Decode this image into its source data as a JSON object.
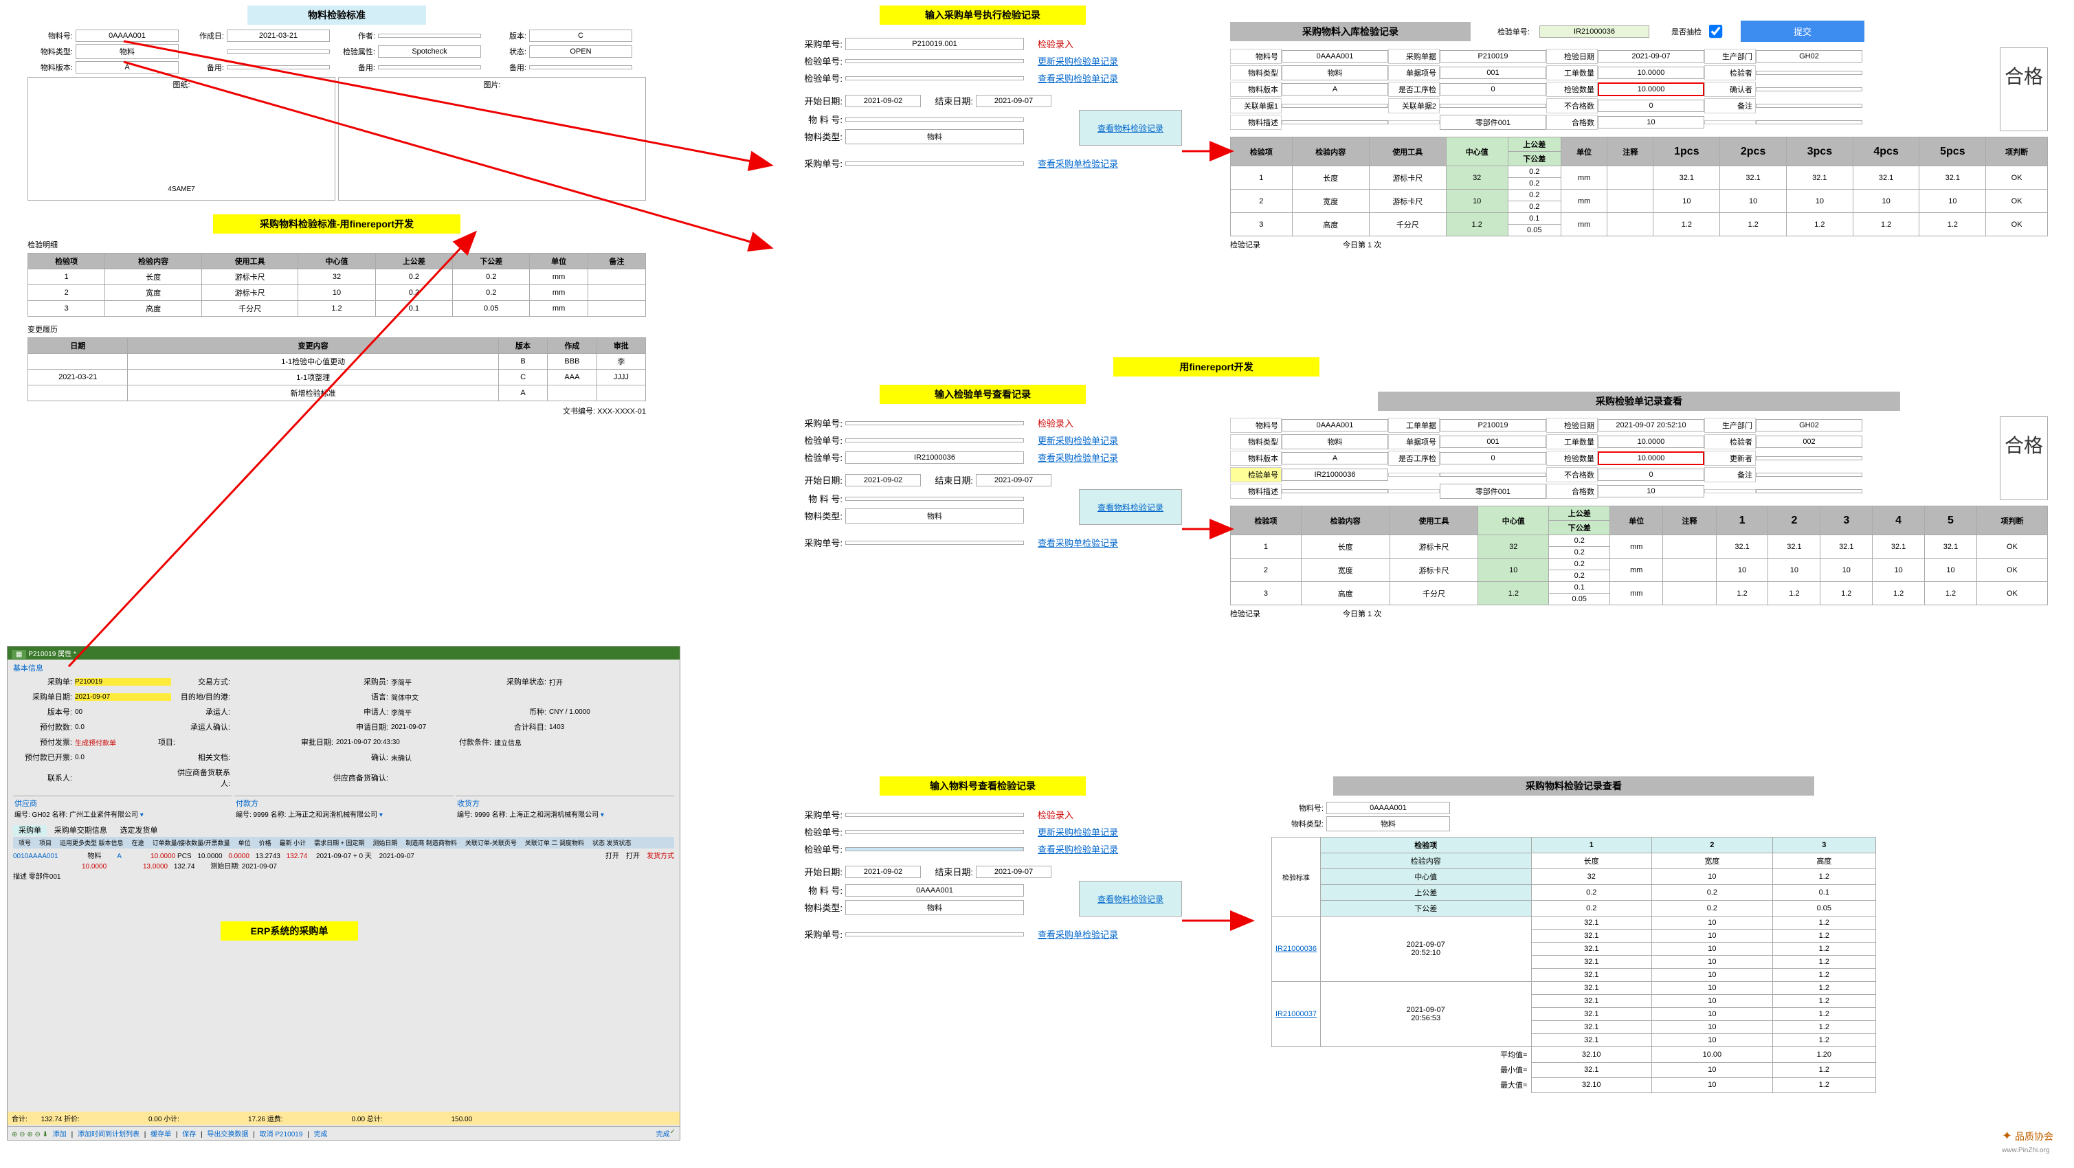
{
  "p1": {
    "title": "物料检验标准",
    "fields": [
      [
        "物料号:",
        "0AAAA001",
        "作成日:",
        "2021-03-21",
        "作者:",
        "",
        "版本:",
        "C"
      ],
      [
        "物料类型:",
        "物料",
        "",
        "",
        "检验属性:",
        "Spotcheck",
        "状态:",
        "OPEN"
      ],
      [
        "物料版本:",
        "A",
        "备用:",
        "",
        "备用:",
        "",
        "备用:",
        ""
      ]
    ],
    "drawings": [
      "图纸:",
      "图片:"
    ],
    "drawing_name": "4SAME7",
    "subTitle": "采购物料检验标准-用finereport开发",
    "specLabel": "检验明细",
    "specHeaders": [
      "检验项",
      "检验内容",
      "使用工具",
      "中心值",
      "上公差",
      "下公差",
      "单位",
      "备注"
    ],
    "specRows": [
      [
        "1",
        "长度",
        "游标卡尺",
        "32",
        "0.2",
        "0.2",
        "mm",
        ""
      ],
      [
        "2",
        "宽度",
        "游标卡尺",
        "10",
        "0.2",
        "0.2",
        "mm",
        ""
      ],
      [
        "3",
        "高度",
        "千分尺",
        "1.2",
        "0.1",
        "0.05",
        "mm",
        ""
      ]
    ],
    "histLabel": "变更履历",
    "histHeaders": [
      "日期",
      "变更内容",
      "版本",
      "作成",
      "审批"
    ],
    "histRows": [
      [
        "",
        "1-1检验中心值更动",
        "B",
        "BBB",
        "李"
      ],
      [
        "2021-03-21",
        "1-1项整理",
        "C",
        "AAA",
        "JJJJ"
      ],
      [
        "",
        "新增检验标准",
        "A",
        "",
        ""
      ]
    ],
    "docNum": [
      "文书编号:",
      "XXX-XXXX-01"
    ]
  },
  "p2": {
    "title": "输入采购单号执行检验记录",
    "rows": [
      {
        "l": "采购单号:",
        "v": "P210019.001",
        "a": "检验录入",
        "cls": "link-red"
      },
      {
        "l": "检验单号:",
        "v": "",
        "a": "更新采购检验单记录",
        "cls": "link"
      },
      {
        "l": "检验单号:",
        "v": "",
        "a": "查看采购检验单记录",
        "cls": "link"
      }
    ],
    "dateRow": {
      "l1": "开始日期:",
      "v1": "2021-09-02",
      "l2": "结束日期:",
      "v2": "2021-09-07"
    },
    "matRows": [
      {
        "l": "物 料 号:",
        "v": ""
      },
      {
        "l": "物料类型:",
        "v": "物料"
      }
    ],
    "matAction": "查看物料检验记录",
    "lastRow": {
      "l": "采购单号:",
      "v": "",
      "a": "查看采购单检验记录"
    }
  },
  "p3": {
    "title": "采购物料入库检验记录",
    "chkLabel": "检验单号:",
    "chkNum": "IR21000036",
    "spotLabel": "是否抽检",
    "submitBtn": "提交",
    "fields": [
      [
        "物料号",
        "0AAAA001",
        "采购单据",
        "P210019",
        "检验日期",
        "2021-09-07",
        "生产部门",
        "GH02"
      ],
      [
        "物料类型",
        "物料",
        "单据项号",
        "001",
        "工单数量",
        "10.0000",
        "检验者",
        ""
      ],
      [
        "物料版本",
        "A",
        "是否工序检",
        "0",
        "检验数量",
        "10.0000",
        "确认者",
        ""
      ],
      [
        "关联单据1",
        "",
        "关联单据2",
        "",
        "不合格数",
        "0",
        "备注",
        ""
      ],
      [
        "物料描述",
        "",
        "",
        "零部件001",
        "合格数",
        "10",
        "",
        ""
      ]
    ],
    "pass": "合格",
    "headers": [
      "检验项",
      "检验内容",
      "使用工具",
      "中心值",
      "上公差/下公差",
      "单位",
      "注释",
      "1pcs",
      "2pcs",
      "3pcs",
      "4pcs",
      "5pcs",
      "项判断"
    ],
    "rows": [
      [
        "1",
        "长度",
        "游标卡尺",
        "32",
        "0.2",
        "0.2",
        "mm",
        "",
        "32.1",
        "32.1",
        "32.1",
        "32.1",
        "32.1",
        "OK"
      ],
      [
        "2",
        "宽度",
        "游标卡尺",
        "10",
        "0.2",
        "0.2",
        "mm",
        "",
        "10",
        "10",
        "10",
        "10",
        "10",
        "OK"
      ],
      [
        "3",
        "高度",
        "千分尺",
        "1.2",
        "0.1",
        "0.05",
        "mm",
        "",
        "1.2",
        "1.2",
        "1.2",
        "1.2",
        "1.2",
        "OK"
      ]
    ],
    "footer": [
      "检验记录",
      "今日第",
      "1",
      "次"
    ]
  },
  "fr": {
    "label": "用finereport开发"
  },
  "p4": {
    "title": "输入检验单号查看记录",
    "rows": [
      {
        "l": "采购单号:",
        "v": "",
        "a": "检验录入",
        "cls": "link-red"
      },
      {
        "l": "检验单号:",
        "v": "",
        "a": "更新采购检验单记录",
        "cls": "link"
      },
      {
        "l": "检验单号:",
        "v": "IR21000036",
        "a": "查看采购检验单记录",
        "cls": "link"
      }
    ],
    "dateRow": {
      "l1": "开始日期:",
      "v1": "2021-09-02",
      "l2": "结束日期:",
      "v2": "2021-09-07"
    },
    "matRows": [
      {
        "l": "物 料 号:",
        "v": ""
      },
      {
        "l": "物料类型:",
        "v": "物料"
      }
    ],
    "matAction": "查看物料检验记录",
    "lastRow": {
      "l": "采购单号:",
      "v": "",
      "a": "查看采购单检验记录"
    }
  },
  "p5": {
    "title": "采购检验单记录查看",
    "fields": [
      [
        "物料号",
        "0AAAA001",
        "工单单据",
        "P210019",
        "检验日期",
        "2021-09-07 20:52:10",
        "生产部门",
        "GH02"
      ],
      [
        "物料类型",
        "物料",
        "单据项号",
        "001",
        "工单数量",
        "10.0000",
        "检验者",
        "002"
      ],
      [
        "物料版本",
        "A",
        "是否工序检",
        "0",
        "检验数量",
        "10.0000",
        "更新者",
        ""
      ],
      [
        "检验单号",
        "IR21000036",
        "",
        "",
        "不合格数",
        "0",
        "备注",
        ""
      ],
      [
        "物料描述",
        "",
        "",
        "零部件001",
        "合格数",
        "10",
        "",
        ""
      ]
    ],
    "pass": "合格",
    "headers": [
      "检验项",
      "检验内容",
      "使用工具",
      "中心值",
      "上公差/下公差",
      "单位",
      "注释",
      "1",
      "2",
      "3",
      "4",
      "5",
      "项判断"
    ],
    "rows": [
      [
        "1",
        "长度",
        "游标卡尺",
        "32",
        "0.2",
        "0.2",
        "mm",
        "",
        "32.1",
        "32.1",
        "32.1",
        "32.1",
        "32.1",
        "OK"
      ],
      [
        "2",
        "宽度",
        "游标卡尺",
        "10",
        "0.2",
        "0.2",
        "mm",
        "",
        "10",
        "10",
        "10",
        "10",
        "10",
        "OK"
      ],
      [
        "3",
        "高度",
        "千分尺",
        "1.2",
        "0.1",
        "0.05",
        "mm",
        "",
        "1.2",
        "1.2",
        "1.2",
        "1.2",
        "1.2",
        "OK"
      ]
    ],
    "footer": [
      "检验记录",
      "今日第",
      "1",
      "次"
    ]
  },
  "p6": {
    "title": "输入物料号查看检验记录",
    "rows": [
      {
        "l": "采购单号:",
        "v": "",
        "a": "检验录入",
        "cls": "link-red"
      },
      {
        "l": "检验单号:",
        "v": "",
        "a": "更新采购检验单记录",
        "cls": "link"
      },
      {
        "l": "检验单号:",
        "v": "",
        "a": "查看采购检验单记录",
        "cls": "link",
        "sel": true
      }
    ],
    "dateRow": {
      "l1": "开始日期:",
      "v1": "2021-09-02",
      "l2": "结束日期:",
      "v2": "2021-09-07"
    },
    "matRows": [
      {
        "l": "物 料 号:",
        "v": "0AAAA001"
      },
      {
        "l": "物料类型:",
        "v": "物料"
      }
    ],
    "matAction": "查看物料检验记录",
    "lastRow": {
      "l": "采购单号:",
      "v": "",
      "a": "查看采购单检验记录"
    }
  },
  "p7": {
    "title": "采购物料检验记录查看",
    "top": [
      [
        "物料号:",
        "0AAAA001"
      ],
      [
        "物料类型:",
        "物料"
      ]
    ],
    "stdLabel": "检验标准",
    "stdHeaders": [
      "检验项",
      "1",
      "2",
      "3"
    ],
    "stdRows": [
      [
        "检验内容",
        "长度",
        "宽度",
        "高度"
      ],
      [
        "中心值",
        "32",
        "10",
        "1.2"
      ],
      [
        "上公差",
        "0.2",
        "0.2",
        "0.1"
      ],
      [
        "下公差",
        "0.2",
        "0.2",
        "0.05"
      ]
    ],
    "recLabel": "检验单号",
    "records": [
      {
        "id": "IR21000036",
        "date": "2021-09-07\n20:52:10",
        "vals": [
          [
            "32.1",
            "10",
            "1.2"
          ],
          [
            "32.1",
            "10",
            "1.2"
          ],
          [
            "32.1",
            "10",
            "1.2"
          ],
          [
            "32.1",
            "10",
            "1.2"
          ],
          [
            "32.1",
            "10",
            "1.2"
          ]
        ]
      },
      {
        "id": "IR21000037",
        "date": "2021-09-07\n20:56:53",
        "vals": [
          [
            "32.1",
            "10",
            "1.2"
          ],
          [
            "32.1",
            "10",
            "1.2"
          ],
          [
            "32.1",
            "10",
            "1.2"
          ],
          [
            "32.1",
            "10",
            "1.2"
          ],
          [
            "32.1",
            "10",
            "1.2"
          ]
        ]
      }
    ],
    "stats": [
      [
        "平均值=",
        "32.10",
        "10.00",
        "1.20"
      ],
      [
        "最小值=",
        "32.1",
        "10",
        "1.2"
      ],
      [
        "最大值=",
        "32.10",
        "10",
        "1.2"
      ]
    ]
  },
  "erp": {
    "winTitle": "P210019 属性 *",
    "label": "ERP系统的采购单",
    "section": "基本信息",
    "info": [
      [
        "采购单:",
        "P210019",
        "交易方式:",
        "",
        "采购员:",
        "李简平",
        "采购单状态:",
        "打开"
      ],
      [
        "采购单日期:",
        "2021-09-07",
        "目的地/目的港:",
        "",
        "语言:",
        "简体中文",
        "",
        "      "
      ],
      [
        "版本号:",
        "00",
        "承运人:",
        "",
        "申请人:",
        "李简平",
        "币种:",
        "CNY / 1.0000"
      ],
      [
        "预付款数:",
        "0.0",
        "承运人确认:",
        "",
        "申请日期:",
        "2021-09-07",
        "合计科目:",
        "1403"
      ],
      [
        "预付发票:",
        "生成预付款单",
        "项目:",
        "",
        "审批日期:",
        "2021-09-07 20:43:30",
        "付款条件:",
        "建立信息"
      ],
      [
        "预付款已开票:",
        "0.0",
        "相关文档:",
        "",
        "确认:",
        "未确认",
        "",
        ""
      ],
      [
        "联系人:",
        "",
        "供应商备货联系人:",
        "",
        "供应商备货确认:",
        "",
        "",
        ""
      ]
    ],
    "parties": [
      {
        "t": "供应商",
        "code": "编号: GH02 名称: 广州工业紧件有限公司"
      },
      {
        "t": "付款方",
        "code": "编号: 9999 名称: 上海正之和润滑机械有限公司"
      },
      {
        "t": "收货方",
        "code": "编号: 9999 名称: 上海正之和润滑机械有限公司"
      }
    ],
    "tab1": "采购单",
    "tab2": "采购单交期信息",
    "tab3": "选定发货单",
    "lineHeaders": [
      "项号",
      "项目",
      "运用更多类型 版本信息",
      "在途",
      "订单数量/接收数量/开票数量",
      "单位",
      "价格",
      "最新 小计",
      "需求日期 + 固定期",
      "测始日期",
      "制造商 制造商物料",
      "关联订单-关联页号",
      "关联订单 二 调度物料",
      "状态 发货状态"
    ],
    "line": {
      "no": "0010AAAA001",
      "mat": "物料",
      "ver": "A",
      "qty1": "10.0000",
      "qty2": "10.0000",
      "unit": "PCS",
      "price": "10.0000",
      "total1": "13.0000",
      "total2": "0.0000",
      "t1": "13.2743",
      "t2": "132.74",
      "t3": "15.0000",
      "date1": "2021-09-07 + 0 天",
      "date2": "2021-09-07",
      "date3": "测始日期: 2021-09-07",
      "status": "打开",
      "ship": "打开",
      "mode": "发货方式"
    },
    "desc": "描述 零部件001",
    "totals": [
      "合计:",
      "132.74 折价:",
      "0.00 小计:",
      "17.26 运费:",
      "0.00 总计:",
      "150.00"
    ],
    "toolbar": [
      "添加",
      "添加时间到计划列表",
      "缓存单",
      "保存",
      "导出交换数据",
      "取消 P210019",
      "完成"
    ]
  },
  "logo": {
    "t1": "品质协会",
    "t2": "www.PinZhi.org"
  }
}
